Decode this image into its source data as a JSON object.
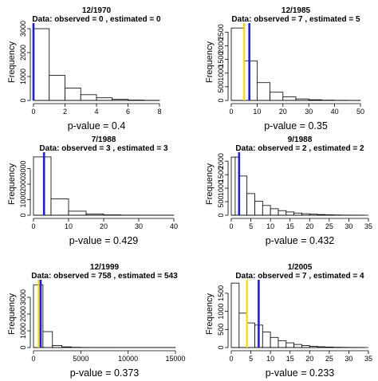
{
  "chart_data": [
    {
      "type": "bar",
      "title": "12/1970",
      "subtitle": "Data: observed =  0 , estimated =  0",
      "ylabel": "Frequency",
      "xlabel": "p-value = 0.4",
      "xlim": [
        0,
        8
      ],
      "xticks": [
        0,
        2,
        4,
        6,
        8
      ],
      "ylim": [
        0,
        3200
      ],
      "yticks": [
        0,
        1000,
        2000,
        3000
      ],
      "bins": [
        {
          "start": 0,
          "end": 1,
          "count": 3000
        },
        {
          "start": 1,
          "end": 2,
          "count": 1050
        },
        {
          "start": 2,
          "end": 3,
          "count": 520
        },
        {
          "start": 3,
          "end": 4,
          "count": 240
        },
        {
          "start": 4,
          "end": 5,
          "count": 110
        },
        {
          "start": 5,
          "end": 6,
          "count": 45
        },
        {
          "start": 6,
          "end": 7,
          "count": 15
        },
        {
          "start": 7,
          "end": 8,
          "count": 5
        }
      ],
      "markers": [
        {
          "value": 0,
          "color": "#ffd700"
        },
        {
          "value": 0,
          "color": "#1f1fd2"
        }
      ]
    },
    {
      "type": "bar",
      "title": "12/1985",
      "subtitle": "Data: observed =  7 , estimated =  5",
      "ylabel": "Frequency",
      "xlabel": "p-value = 0.35",
      "xlim": [
        0,
        50
      ],
      "xticks": [
        0,
        10,
        20,
        30,
        40,
        50
      ],
      "ylim": [
        0,
        2800
      ],
      "yticks": [
        0,
        500,
        1000,
        1500,
        2000,
        2500
      ],
      "bins": [
        {
          "start": 0,
          "end": 5,
          "count": 2650
        },
        {
          "start": 5,
          "end": 10,
          "count": 1450
        },
        {
          "start": 10,
          "end": 15,
          "count": 650
        },
        {
          "start": 15,
          "end": 20,
          "count": 300
        },
        {
          "start": 20,
          "end": 25,
          "count": 130
        },
        {
          "start": 25,
          "end": 30,
          "count": 55
        },
        {
          "start": 30,
          "end": 35,
          "count": 25
        },
        {
          "start": 35,
          "end": 40,
          "count": 10
        },
        {
          "start": 40,
          "end": 45,
          "count": 5
        },
        {
          "start": 45,
          "end": 50,
          "count": 2
        }
      ],
      "markers": [
        {
          "value": 5,
          "color": "#ffd700"
        },
        {
          "value": 7,
          "color": "#1f1fd2"
        }
      ]
    },
    {
      "type": "bar",
      "title": "7/1988",
      "subtitle": "Data: observed =  3 , estimated =  3",
      "ylabel": "Frequency",
      "xlabel": "p-value = 0.429",
      "xlim": [
        0,
        40
      ],
      "xticks": [
        0,
        10,
        20,
        30,
        40
      ],
      "ylim": [
        0,
        4000
      ],
      "yticks": [
        0,
        1000,
        2000,
        3000
      ],
      "bins": [
        {
          "start": 0,
          "end": 5,
          "count": 3750
        },
        {
          "start": 5,
          "end": 10,
          "count": 1050
        },
        {
          "start": 10,
          "end": 15,
          "count": 260
        },
        {
          "start": 15,
          "end": 20,
          "count": 70
        },
        {
          "start": 20,
          "end": 25,
          "count": 20
        },
        {
          "start": 25,
          "end": 30,
          "count": 8
        },
        {
          "start": 30,
          "end": 35,
          "count": 3
        },
        {
          "start": 35,
          "end": 40,
          "count": 1
        }
      ],
      "markers": [
        {
          "value": 3,
          "color": "#ffd700"
        },
        {
          "value": 3,
          "color": "#1f1fd2"
        }
      ]
    },
    {
      "type": "bar",
      "title": "9/1988",
      "subtitle": "Data: observed =  2 , estimated =  2",
      "ylabel": "Frequency",
      "xlabel": "p-value = 0.432",
      "xlim": [
        0,
        35
      ],
      "xticks": [
        0,
        5,
        10,
        15,
        20,
        25,
        30,
        35
      ],
      "ylim": [
        0,
        2300
      ],
      "yticks": [
        0,
        500,
        1000,
        1500,
        2000
      ],
      "bins": [
        {
          "start": 0,
          "end": 1,
          "count": 2150
        },
        {
          "start": 1,
          "end": 2,
          "count": 2150
        },
        {
          "start": 2,
          "end": 4,
          "count": 1450
        },
        {
          "start": 4,
          "end": 6,
          "count": 800
        },
        {
          "start": 6,
          "end": 8,
          "count": 520
        },
        {
          "start": 8,
          "end": 10,
          "count": 360
        },
        {
          "start": 10,
          "end": 12,
          "count": 240
        },
        {
          "start": 12,
          "end": 14,
          "count": 170
        },
        {
          "start": 14,
          "end": 16,
          "count": 120
        },
        {
          "start": 16,
          "end": 18,
          "count": 80
        },
        {
          "start": 18,
          "end": 20,
          "count": 55
        },
        {
          "start": 20,
          "end": 22,
          "count": 38
        },
        {
          "start": 22,
          "end": 24,
          "count": 25
        },
        {
          "start": 24,
          "end": 26,
          "count": 15
        },
        {
          "start": 26,
          "end": 28,
          "count": 9
        },
        {
          "start": 28,
          "end": 30,
          "count": 5
        },
        {
          "start": 30,
          "end": 32,
          "count": 3
        },
        {
          "start": 32,
          "end": 34,
          "count": 2
        }
      ],
      "markers": [
        {
          "value": 2,
          "color": "#ffd700"
        },
        {
          "value": 2,
          "color": "#1f1fd2"
        }
      ]
    },
    {
      "type": "bar",
      "title": "12/1999",
      "subtitle": "Data: observed =  758 , estimated =  543",
      "ylabel": "Frequency",
      "xlabel": "p-value = 0.373",
      "xlim": [
        0,
        15000
      ],
      "xticks": [
        0,
        5000,
        10000,
        15000
      ],
      "ylim": [
        0,
        4000
      ],
      "yticks": [
        0,
        1000,
        2000,
        3000
      ],
      "bins": [
        {
          "start": 0,
          "end": 1000,
          "count": 3750
        },
        {
          "start": 1000,
          "end": 2000,
          "count": 950
        },
        {
          "start": 2000,
          "end": 3000,
          "count": 120
        },
        {
          "start": 3000,
          "end": 4000,
          "count": 40
        },
        {
          "start": 4000,
          "end": 5000,
          "count": 15
        },
        {
          "start": 5000,
          "end": 6000,
          "count": 6
        },
        {
          "start": 6000,
          "end": 8000,
          "count": 3
        },
        {
          "start": 8000,
          "end": 10000,
          "count": 2
        },
        {
          "start": 10000,
          "end": 15000,
          "count": 1
        }
      ],
      "markers": [
        {
          "value": 543,
          "color": "#ffd700"
        },
        {
          "value": 758,
          "color": "#1f1fd2"
        }
      ]
    },
    {
      "type": "bar",
      "title": "1/2005",
      "subtitle": "Data: observed =  7 , estimated =  4",
      "ylabel": "Frequency",
      "xlabel": "p-value = 0.233",
      "xlim": [
        0,
        35
      ],
      "xticks": [
        0,
        5,
        10,
        15,
        20,
        25,
        30,
        35
      ],
      "ylim": [
        0,
        1850
      ],
      "yticks": [
        0,
        500,
        1000,
        1500
      ],
      "bins": [
        {
          "start": 0,
          "end": 2,
          "count": 1780
        },
        {
          "start": 2,
          "end": 4,
          "count": 950
        },
        {
          "start": 4,
          "end": 6,
          "count": 680
        },
        {
          "start": 6,
          "end": 8,
          "count": 620
        },
        {
          "start": 8,
          "end": 10,
          "count": 430
        },
        {
          "start": 10,
          "end": 12,
          "count": 280
        },
        {
          "start": 12,
          "end": 14,
          "count": 190
        },
        {
          "start": 14,
          "end": 16,
          "count": 130
        },
        {
          "start": 16,
          "end": 18,
          "count": 85
        },
        {
          "start": 18,
          "end": 20,
          "count": 55
        },
        {
          "start": 20,
          "end": 22,
          "count": 35
        },
        {
          "start": 22,
          "end": 24,
          "count": 22
        },
        {
          "start": 24,
          "end": 26,
          "count": 14
        },
        {
          "start": 26,
          "end": 28,
          "count": 8
        },
        {
          "start": 28,
          "end": 30,
          "count": 5
        },
        {
          "start": 30,
          "end": 32,
          "count": 3
        },
        {
          "start": 32,
          "end": 34,
          "count": 2
        }
      ],
      "markers": [
        {
          "value": 4,
          "color": "#ffd700"
        },
        {
          "value": 7,
          "color": "#1f1fd2"
        }
      ]
    }
  ]
}
